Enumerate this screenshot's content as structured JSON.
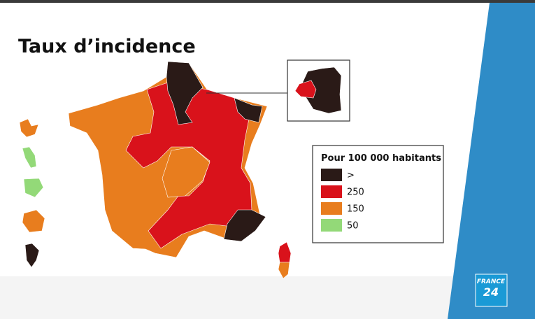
{
  "title": "Taux d’incidence",
  "legend": {
    "title": "Pour 100 000 habitants",
    "items": [
      {
        "label": ">",
        "color": "#2a1a17"
      },
      {
        "label": "250",
        "color": "#d9121b"
      },
      {
        "label": "150",
        "color": "#e87d1e"
      },
      {
        "label": "50",
        "color": "#93d978"
      }
    ]
  },
  "logo": {
    "line1": "FRANCE",
    "line2": "24"
  }
}
